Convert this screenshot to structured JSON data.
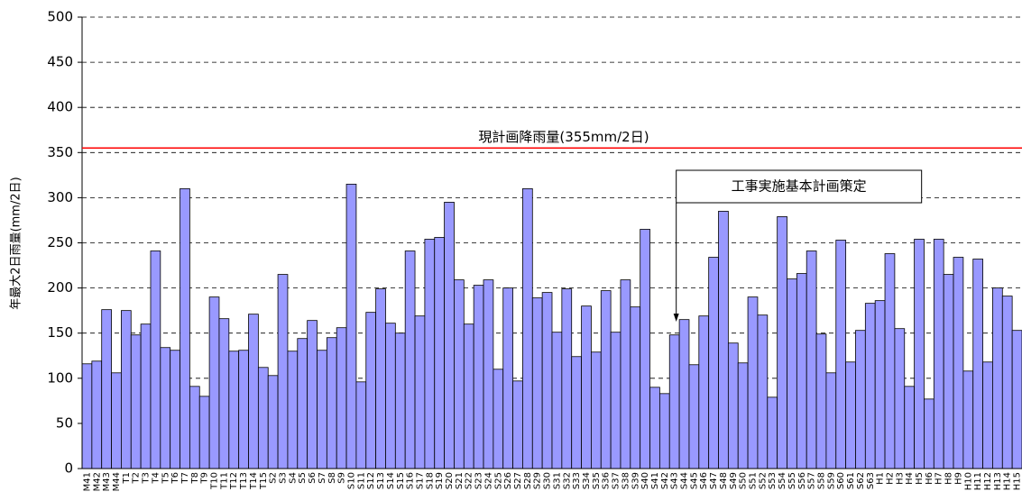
{
  "chart_data": {
    "type": "bar",
    "y_label": "年最大2日雨量(mm/2日)",
    "categories": [
      "M41",
      "M42",
      "M43",
      "M44",
      "T1",
      "T2",
      "T3",
      "T4",
      "T5",
      "T6",
      "T7",
      "T8",
      "T9",
      "T10",
      "T11",
      "T12",
      "T13",
      "T14",
      "T15",
      "S2",
      "S3",
      "S4",
      "S5",
      "S6",
      "S7",
      "S8",
      "S9",
      "S10",
      "S11",
      "S12",
      "S13",
      "S14",
      "S15",
      "S16",
      "S17",
      "S18",
      "S19",
      "S20",
      "S21",
      "S22",
      "S23",
      "S24",
      "S25",
      "S26",
      "S27",
      "S28",
      "S29",
      "S30",
      "S31",
      "S32",
      "S33",
      "S34",
      "S35",
      "S36",
      "S37",
      "S38",
      "S39",
      "S40",
      "S41",
      "S42",
      "S43",
      "S44",
      "S45",
      "S46",
      "S47",
      "S48",
      "S49",
      "S50",
      "S51",
      "S52",
      "S53",
      "S54",
      "S55",
      "S56",
      "S57",
      "S58",
      "S59",
      "S60",
      "S61",
      "S62",
      "S63",
      "H1",
      "H2",
      "H3",
      "H4",
      "H5",
      "H6",
      "H7",
      "H8",
      "H9",
      "H10",
      "H11",
      "H12",
      "H13",
      "H14",
      "H15"
    ],
    "values": [
      116,
      119,
      176,
      106,
      175,
      148,
      160,
      241,
      134,
      131,
      310,
      91,
      80,
      190,
      166,
      130,
      131,
      171,
      112,
      103,
      215,
      130,
      144,
      164,
      131,
      145,
      156,
      315,
      96,
      173,
      199,
      161,
      150,
      241,
      169,
      254,
      256,
      295,
      209,
      160,
      203,
      209,
      110,
      200,
      97,
      310,
      189,
      195,
      151,
      199,
      124,
      180,
      129,
      197,
      151,
      209,
      179,
      265,
      90,
      83,
      148,
      165,
      115,
      169,
      234,
      285,
      139,
      117,
      190,
      170,
      79,
      279,
      210,
      216,
      241,
      149,
      106,
      253,
      118,
      153,
      183,
      186,
      238,
      155,
      91,
      254,
      77,
      254,
      215,
      234,
      108,
      232,
      118,
      200,
      191,
      153
    ],
    "color": "#9999ff",
    "ylim": [
      0,
      500
    ],
    "yticks": [
      0,
      50,
      100,
      150,
      200,
      250,
      300,
      350,
      400,
      450,
      500
    ],
    "grid": true,
    "reference_line": {
      "value": 355,
      "label": "現計画降雨量(355mm/2日)",
      "color": "#ff0000"
    },
    "annotation": {
      "text": "工事実施基本計画策定",
      "category": "S43"
    }
  }
}
